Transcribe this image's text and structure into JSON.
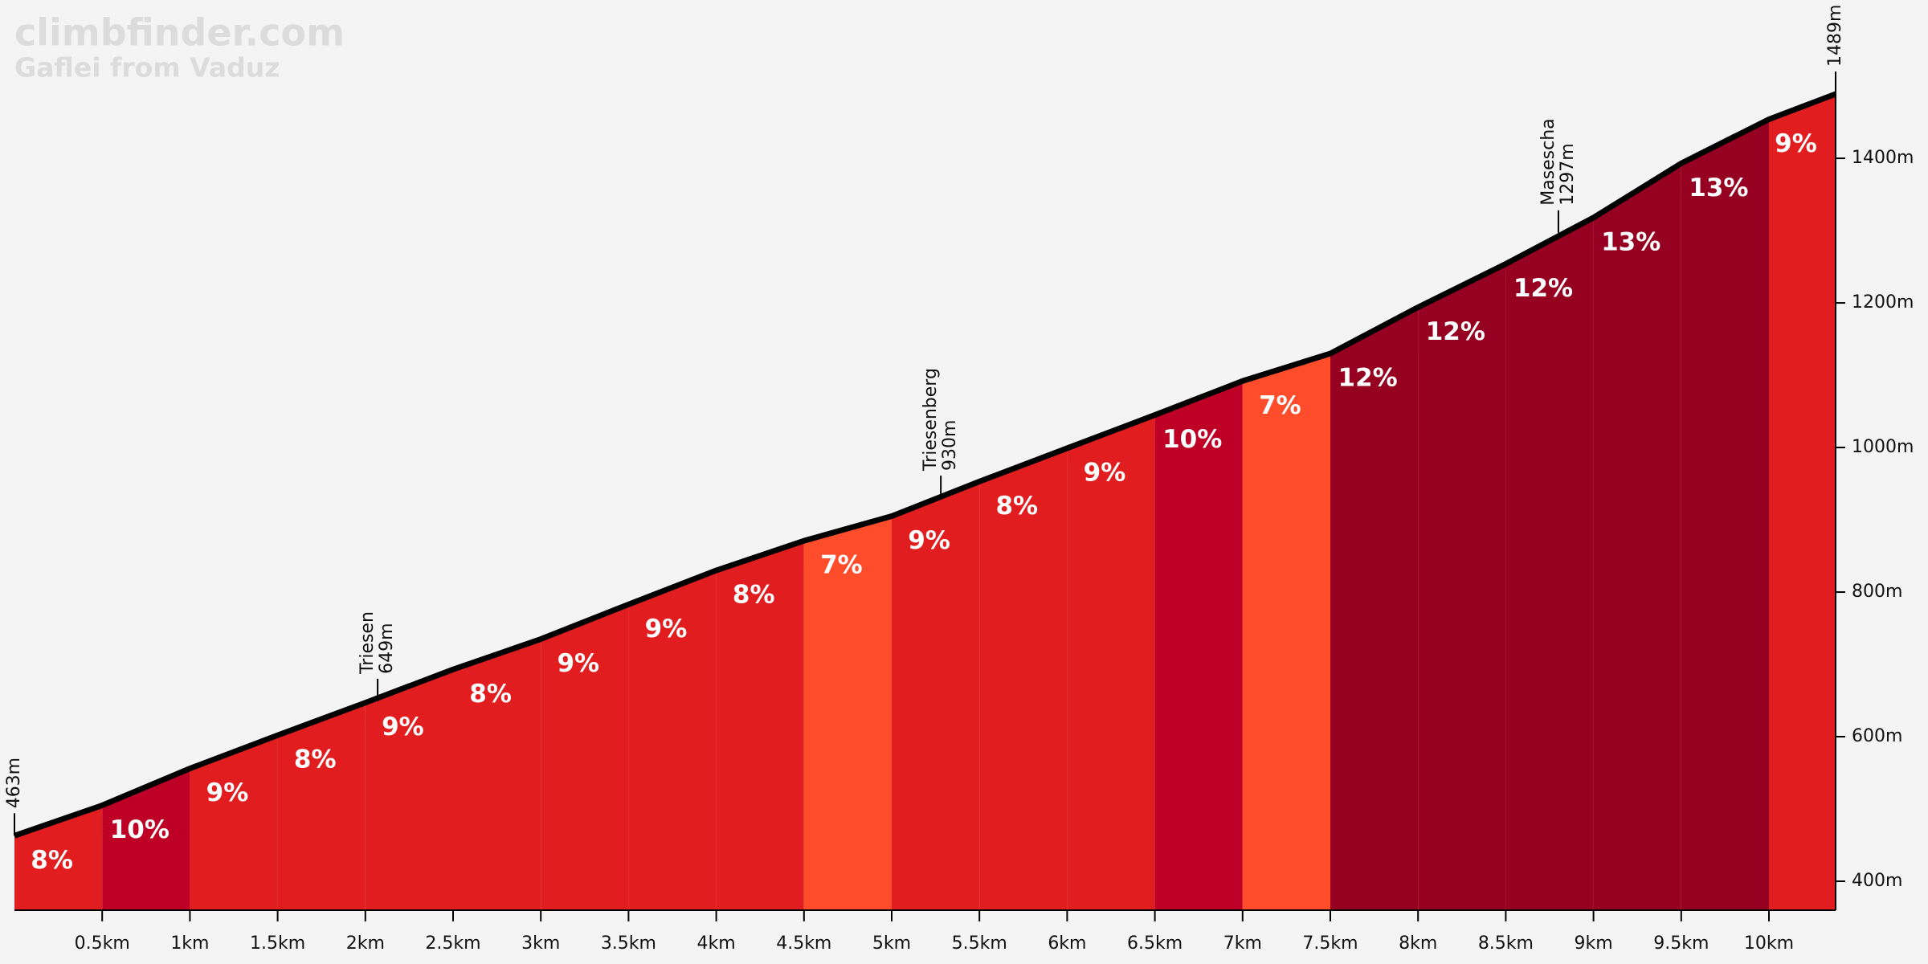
{
  "chart_data": {
    "type": "profile",
    "title": "climbfinder.com",
    "subtitle": "Gaflei from Vaduz",
    "x": [
      0,
      0.5,
      1,
      1.5,
      2,
      2.5,
      3,
      3.5,
      4,
      4.5,
      5,
      5.5,
      6,
      6.5,
      7,
      7.5,
      8,
      8.5,
      9,
      9.5,
      10,
      10.38
    ],
    "values": [
      463,
      505,
      556,
      602,
      647,
      693,
      735,
      783,
      830,
      871,
      905,
      953,
      999,
      1045,
      1092,
      1130,
      1194,
      1254,
      1318,
      1393,
      1454,
      1489
    ],
    "start_label": "463m",
    "end_label": "1489m",
    "segments": {
      "values": [
        8,
        10,
        9,
        8,
        9,
        8,
        9,
        9,
        8,
        7,
        9,
        8,
        9,
        10,
        7,
        12,
        12,
        12,
        13,
        13,
        9
      ],
      "value_labels": [
        "8%",
        "10%",
        "9%",
        "8%",
        "9%",
        "8%",
        "9%",
        "9%",
        "8%",
        "7%",
        "9%",
        "8%",
        "9%",
        "10%",
        "7%",
        "12%",
        "12%",
        "12%",
        "13%",
        "13%",
        "9%"
      ],
      "colors": [
        "#e21d1f",
        "#be0026",
        "#e21d1f",
        "#e21d1f",
        "#e21d1f",
        "#e21d1f",
        "#e21d1f",
        "#e21d1f",
        "#e21d1f",
        "#ff4c2b",
        "#e21d1f",
        "#e21d1f",
        "#e21d1f",
        "#be0026",
        "#ff4c2b",
        "#960021",
        "#960021",
        "#960021",
        "#960021",
        "#960021",
        "#e21d1f"
      ]
    },
    "annotations": [
      {
        "name": "Triesen",
        "x": 2.07,
        "y": 649,
        "label": "649m"
      },
      {
        "name": "Triesenberg",
        "x": 5.28,
        "y": 930,
        "label": "930m"
      },
      {
        "name": "Masescha",
        "x": 8.8,
        "y": 1297,
        "label": "1297m"
      }
    ],
    "xlim": [
      0,
      10.38
    ],
    "ylim": [
      360,
      1619
    ],
    "xticks": [
      {
        "value": 0.5,
        "label": "0.5km"
      },
      {
        "value": 1,
        "label": "1km"
      },
      {
        "value": 1.5,
        "label": "1.5km"
      },
      {
        "value": 2,
        "label": "2km"
      },
      {
        "value": 2.5,
        "label": "2.5km"
      },
      {
        "value": 3,
        "label": "3km"
      },
      {
        "value": 3.5,
        "label": "3.5km"
      },
      {
        "value": 4,
        "label": "4km"
      },
      {
        "value": 4.5,
        "label": "4.5km"
      },
      {
        "value": 5,
        "label": "5km"
      },
      {
        "value": 5.5,
        "label": "5.5km"
      },
      {
        "value": 6,
        "label": "6km"
      },
      {
        "value": 6.5,
        "label": "6.5km"
      },
      {
        "value": 7,
        "label": "7km"
      },
      {
        "value": 7.5,
        "label": "7.5km"
      },
      {
        "value": 8,
        "label": "8km"
      },
      {
        "value": 8.5,
        "label": "8.5km"
      },
      {
        "value": 9,
        "label": "9km"
      },
      {
        "value": 9.5,
        "label": "9.5km"
      },
      {
        "value": 10,
        "label": "10km"
      }
    ],
    "yticks": [
      {
        "value": 400,
        "label": "400m"
      },
      {
        "value": 600,
        "label": "600m"
      },
      {
        "value": 800,
        "label": "800m"
      },
      {
        "value": 1000,
        "label": "1000m"
      },
      {
        "value": 1200,
        "label": "1200m"
      },
      {
        "value": 1400,
        "label": "1400m"
      }
    ]
  }
}
